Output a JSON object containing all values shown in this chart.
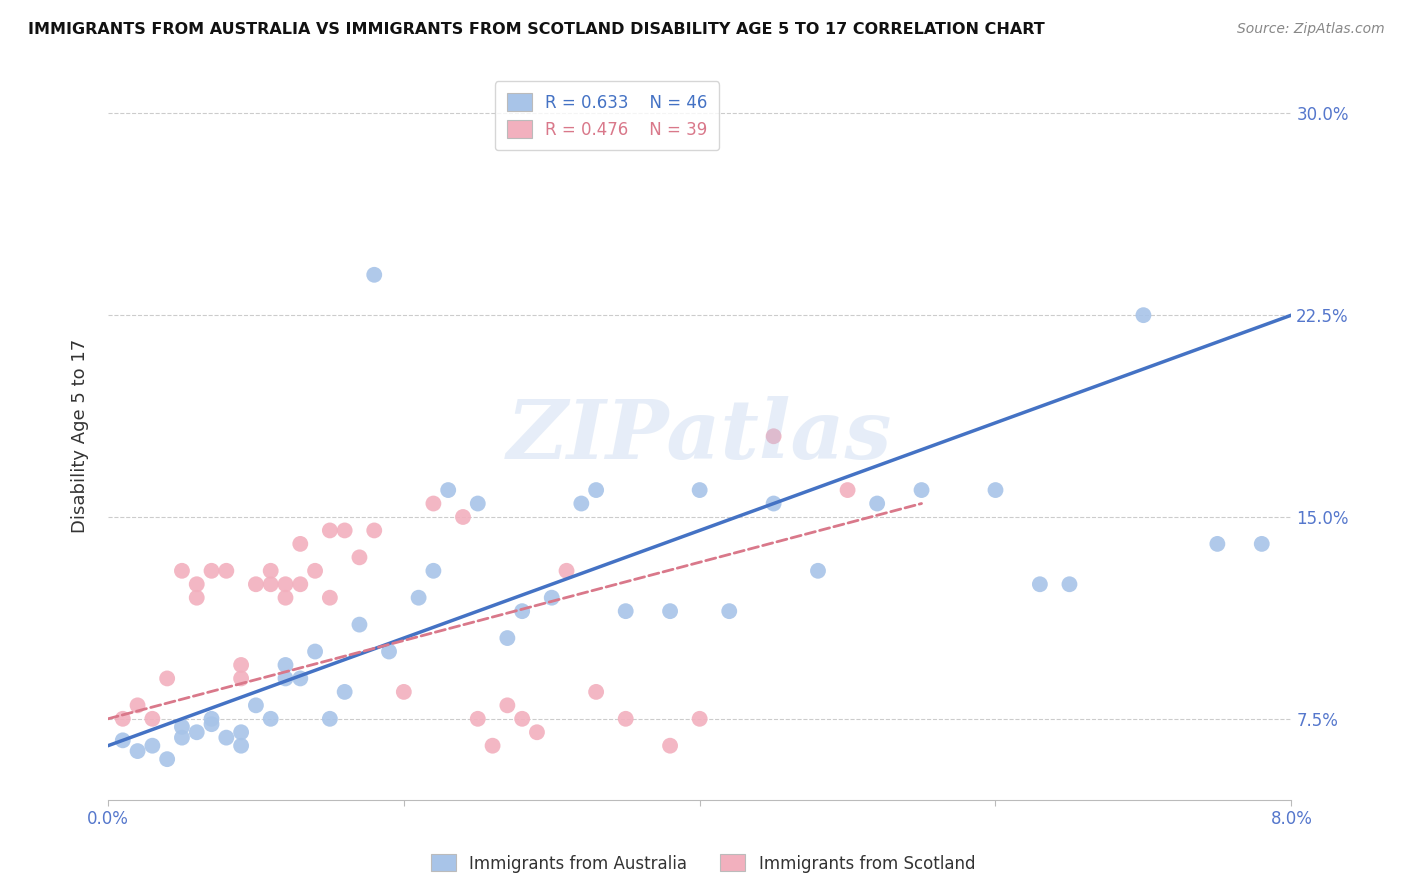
{
  "title": "IMMIGRANTS FROM AUSTRALIA VS IMMIGRANTS FROM SCOTLAND DISABILITY AGE 5 TO 17 CORRELATION CHART",
  "source": "Source: ZipAtlas.com",
  "ylabel": "Disability Age 5 to 17",
  "ytick_labels": [
    "7.5%",
    "15.0%",
    "22.5%",
    "30.0%"
  ],
  "ytick_values": [
    0.075,
    0.15,
    0.225,
    0.3
  ],
  "xlim": [
    0.0,
    0.08
  ],
  "ylim": [
    0.045,
    0.315
  ],
  "legend_r_australia": "R = 0.633",
  "legend_n_australia": "N = 46",
  "legend_r_scotland": "R = 0.476",
  "legend_n_scotland": "N = 39",
  "color_australia": "#a8c4e8",
  "color_scotland": "#f2b0be",
  "line_color_australia": "#4472c4",
  "line_color_scotland": "#d9788a",
  "watermark": "ZIPatlas",
  "australia_x": [
    0.001,
    0.002,
    0.003,
    0.004,
    0.005,
    0.005,
    0.006,
    0.007,
    0.007,
    0.008,
    0.009,
    0.009,
    0.01,
    0.011,
    0.012,
    0.012,
    0.013,
    0.014,
    0.015,
    0.016,
    0.017,
    0.018,
    0.019,
    0.021,
    0.022,
    0.023,
    0.025,
    0.027,
    0.028,
    0.03,
    0.032,
    0.033,
    0.035,
    0.038,
    0.04,
    0.042,
    0.045,
    0.048,
    0.052,
    0.055,
    0.06,
    0.063,
    0.065,
    0.07,
    0.075,
    0.078
  ],
  "australia_y": [
    0.067,
    0.063,
    0.065,
    0.06,
    0.068,
    0.072,
    0.07,
    0.073,
    0.075,
    0.068,
    0.065,
    0.07,
    0.08,
    0.075,
    0.09,
    0.095,
    0.09,
    0.1,
    0.075,
    0.085,
    0.11,
    0.24,
    0.1,
    0.12,
    0.13,
    0.16,
    0.155,
    0.105,
    0.115,
    0.12,
    0.155,
    0.16,
    0.115,
    0.115,
    0.16,
    0.115,
    0.155,
    0.13,
    0.155,
    0.16,
    0.16,
    0.125,
    0.125,
    0.225,
    0.14,
    0.14
  ],
  "scotland_x": [
    0.001,
    0.002,
    0.003,
    0.004,
    0.005,
    0.006,
    0.006,
    0.007,
    0.008,
    0.009,
    0.009,
    0.01,
    0.011,
    0.011,
    0.012,
    0.012,
    0.013,
    0.013,
    0.014,
    0.015,
    0.015,
    0.016,
    0.017,
    0.018,
    0.02,
    0.022,
    0.024,
    0.025,
    0.026,
    0.027,
    0.028,
    0.029,
    0.031,
    0.033,
    0.035,
    0.038,
    0.04,
    0.045,
    0.05
  ],
  "scotland_y": [
    0.075,
    0.08,
    0.075,
    0.09,
    0.13,
    0.12,
    0.125,
    0.13,
    0.13,
    0.09,
    0.095,
    0.125,
    0.125,
    0.13,
    0.12,
    0.125,
    0.125,
    0.14,
    0.13,
    0.12,
    0.145,
    0.145,
    0.135,
    0.145,
    0.085,
    0.155,
    0.15,
    0.075,
    0.065,
    0.08,
    0.075,
    0.07,
    0.13,
    0.085,
    0.075,
    0.065,
    0.075,
    0.18,
    0.16
  ]
}
